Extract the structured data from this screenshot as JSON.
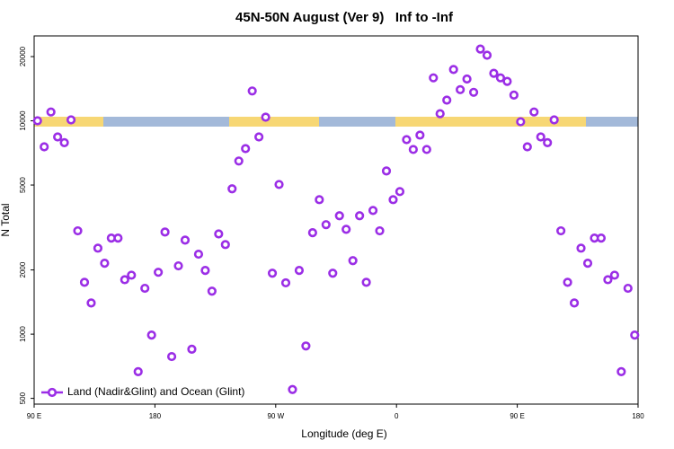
{
  "chart_data": {
    "type": "scatter",
    "title": "45N-50N August (Ver 9)   Inf to -Inf",
    "x_label": "Longitude (deg E)",
    "y_label": "N Total",
    "log_y": true,
    "legend": "bottom-left",
    "xlim": [
      90,
      540
    ],
    "ylim": [
      470,
      25000
    ],
    "xticks": [
      {
        "value": 90,
        "label": "90 E"
      },
      {
        "value": 180,
        "label": "180"
      },
      {
        "value": 270,
        "label": "90 W"
      },
      {
        "value": 360,
        "label": "0"
      },
      {
        "value": 450,
        "label": "90 E"
      },
      {
        "value": 540,
        "label": "180"
      }
    ],
    "yticks": [
      500,
      1000,
      2000,
      5000,
      10000,
      20000
    ],
    "x": [
      92.5,
      97.5,
      102.5,
      107.5,
      112.5,
      117.5,
      122.5,
      127.5,
      132.5,
      137.5,
      142.5,
      147.5,
      152.5,
      157.5,
      162.5,
      167.5,
      172.5,
      177.5,
      182.5,
      187.5,
      192.5,
      197.5,
      202.5,
      207.5,
      212.5,
      217.5,
      222.5,
      227.5,
      232.5,
      237.5,
      242.5,
      247.5,
      252.5,
      257.5,
      262.5,
      267.5,
      272.5,
      277.5,
      282.5,
      287.5,
      292.5,
      297.5,
      302.5,
      307.5,
      312.5,
      317.5,
      322.5,
      327.5,
      332.5,
      337.5,
      342.5,
      347.5,
      352.5,
      357.5,
      362.5,
      367.5,
      372.5,
      377.5,
      382.5,
      387.5,
      392.5,
      397.5,
      402.5,
      407.5,
      412.5,
      417.5,
      422.5,
      427.5,
      432.5,
      437.5,
      442.5,
      447.5,
      452.5,
      457.5,
      462.5,
      467.5,
      472.5,
      477.5,
      482.5,
      487.5,
      492.5,
      497.5,
      502.5,
      507.5,
      512.5,
      517.5,
      522.5,
      527.5,
      532.5,
      537.5
    ],
    "series": [
      {
        "name": "Land (Nadir&Glint) and Ocean (Glint)",
        "color": "#9b2ee6",
        "values": [
          10000,
          7550,
          11000,
          8400,
          7900,
          10100,
          3050,
          1750,
          1400,
          2530,
          2150,
          2820,
          2820,
          1800,
          1890,
          667,
          1640,
          990,
          1950,
          3010,
          785,
          2090,
          2760,
          850,
          2370,
          1990,
          1590,
          2950,
          2630,
          4800,
          6480,
          7410,
          13800,
          8400,
          10400,
          1930,
          5030,
          1740,
          550,
          1990,
          880,
          2990,
          4270,
          3260,
          1930,
          3590,
          3100,
          2210,
          3590,
          1750,
          3800,
          3050,
          5820,
          4270,
          4660,
          8160,
          7340,
          8570,
          7340,
          15900,
          10800,
          12500,
          17400,
          14000,
          15700,
          13600,
          21700,
          20300,
          16700,
          15900,
          15300,
          13200,
          9900,
          7550,
          11000,
          8400,
          7900,
          10100,
          3050,
          1750,
          1400,
          2530,
          2150,
          2820,
          2820,
          1800,
          1890,
          667,
          1640,
          990
        ]
      }
    ]
  }
}
